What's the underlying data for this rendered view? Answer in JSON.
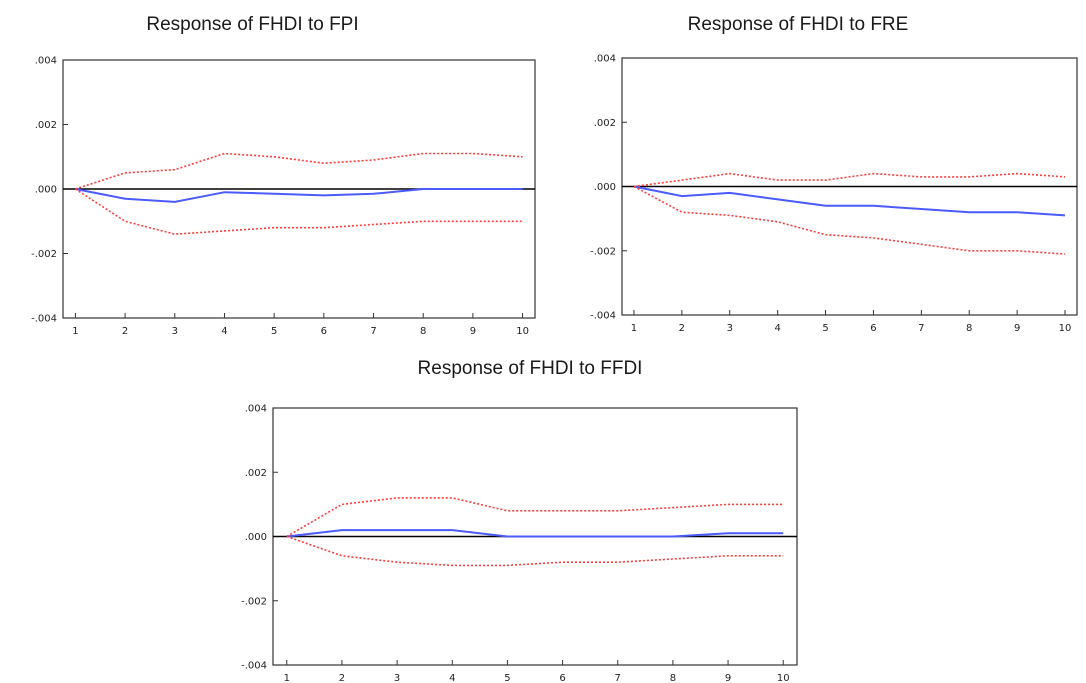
{
  "chart_data": [
    {
      "type": "line",
      "title": "Response of FHDI to FPI",
      "x": [
        1,
        2,
        3,
        4,
        5,
        6,
        7,
        8,
        9,
        10
      ],
      "ylim": [
        -0.004,
        0.004
      ],
      "yticks": [
        ".004",
        ".002",
        ".000",
        "-.002",
        "-.004"
      ],
      "ytick_values": [
        0.004,
        0.002,
        0.0,
        -0.002,
        -0.004
      ],
      "xticks": [
        "1",
        "2",
        "3",
        "4",
        "5",
        "6",
        "7",
        "8",
        "9",
        "10"
      ],
      "zero_line": true,
      "grid": false,
      "colors": {
        "response": "#4a5bff",
        "bands": "#ff3b3b",
        "zero": "#000000"
      },
      "series": [
        {
          "role": "response",
          "values": [
            0.0,
            -0.0003,
            -0.0004,
            -0.0001,
            -0.00015,
            -0.0002,
            -0.00015,
            0.0,
            0.0,
            0.0
          ]
        },
        {
          "role": "upper-band",
          "values": [
            0.0,
            0.0005,
            0.0006,
            0.0011,
            0.001,
            0.0008,
            0.0009,
            0.0011,
            0.0011,
            0.001
          ]
        },
        {
          "role": "lower-band",
          "values": [
            0.0,
            -0.001,
            -0.0014,
            -0.0013,
            -0.0012,
            -0.0012,
            -0.0011,
            -0.001,
            -0.001,
            -0.001
          ]
        }
      ]
    },
    {
      "type": "line",
      "title": "Response of FHDI to FRE",
      "x": [
        1,
        2,
        3,
        4,
        5,
        6,
        7,
        8,
        9,
        10
      ],
      "ylim": [
        -0.004,
        0.004
      ],
      "yticks": [
        ".004",
        ".002",
        ".000",
        "-.002",
        "-.004"
      ],
      "ytick_values": [
        0.004,
        0.002,
        0.0,
        -0.002,
        -0.004
      ],
      "xticks": [
        "1",
        "2",
        "3",
        "4",
        "5",
        "6",
        "7",
        "8",
        "9",
        "10"
      ],
      "zero_line": true,
      "grid": false,
      "colors": {
        "response": "#4a5bff",
        "bands": "#ff3b3b",
        "zero": "#000000"
      },
      "series": [
        {
          "role": "response",
          "values": [
            0.0,
            -0.0003,
            -0.0002,
            -0.0004,
            -0.0006,
            -0.0006,
            -0.0007,
            -0.0008,
            -0.0008,
            -0.0009
          ]
        },
        {
          "role": "upper-band",
          "values": [
            0.0,
            0.0002,
            0.0004,
            0.0002,
            0.0002,
            0.0004,
            0.0003,
            0.0003,
            0.0004,
            0.0003
          ]
        },
        {
          "role": "lower-band",
          "values": [
            0.0,
            -0.0008,
            -0.0009,
            -0.0011,
            -0.0015,
            -0.0016,
            -0.0018,
            -0.002,
            -0.002,
            -0.0021
          ]
        }
      ]
    },
    {
      "type": "line",
      "title": "Response of FHDI to FFDI",
      "x": [
        1,
        2,
        3,
        4,
        5,
        6,
        7,
        8,
        9,
        10
      ],
      "ylim": [
        -0.004,
        0.004
      ],
      "yticks": [
        ".004",
        ".002",
        ".000",
        "-.002",
        "-.004"
      ],
      "ytick_values": [
        0.004,
        0.002,
        0.0,
        -0.002,
        -0.004
      ],
      "xticks": [
        "1",
        "2",
        "3",
        "4",
        "5",
        "6",
        "7",
        "8",
        "9",
        "10"
      ],
      "zero_line": true,
      "grid": false,
      "colors": {
        "response": "#4a5bff",
        "bands": "#ff3b3b",
        "zero": "#000000"
      },
      "series": [
        {
          "role": "response",
          "values": [
            0.0,
            0.0002,
            0.0002,
            0.0002,
            0.0,
            0.0,
            0.0,
            0.0,
            0.0001,
            0.0001
          ]
        },
        {
          "role": "upper-band",
          "values": [
            0.0,
            0.001,
            0.0012,
            0.0012,
            0.0008,
            0.0008,
            0.0008,
            0.0009,
            0.001,
            0.001
          ]
        },
        {
          "role": "lower-band",
          "values": [
            0.0,
            -0.0006,
            -0.0008,
            -0.0009,
            -0.0009,
            -0.0008,
            -0.0008,
            -0.0007,
            -0.0006,
            -0.0006
          ]
        }
      ]
    }
  ]
}
